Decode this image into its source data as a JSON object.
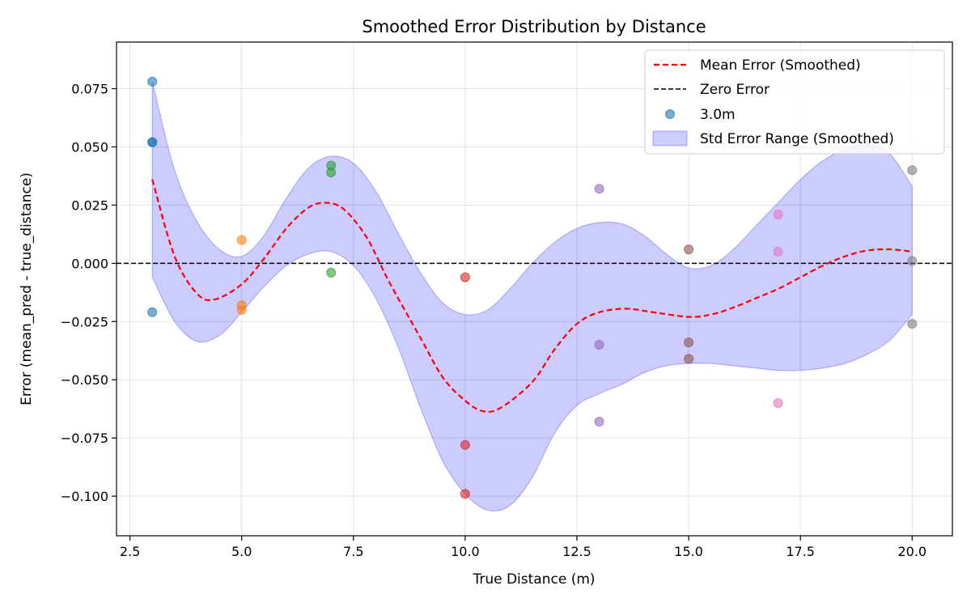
{
  "chart_data": {
    "type": "scatter",
    "title": "Smoothed Error Distribution by Distance",
    "xlabel": "True Distance (m)",
    "ylabel": "Error (mean_pred - true_distance)",
    "xlim": [
      2.2,
      20.9
    ],
    "ylim": [
      -0.117,
      0.095
    ],
    "xticks": [
      2.5,
      5.0,
      7.5,
      10.0,
      12.5,
      15.0,
      17.5,
      20.0
    ],
    "xtick_labels": [
      "2.5",
      "5.0",
      "7.5",
      "10.0",
      "12.5",
      "15.0",
      "17.5",
      "20.0"
    ],
    "yticks": [
      -0.1,
      -0.075,
      -0.05,
      -0.025,
      0.0,
      0.025,
      0.05,
      0.075
    ],
    "ytick_labels": [
      "−0.100",
      "−0.075",
      "−0.050",
      "−0.025",
      "0.000",
      "0.025",
      "0.050",
      "0.075"
    ],
    "grid": true,
    "legend_position": "top-right",
    "legend": [
      {
        "label": "Mean Error (Smoothed)",
        "kind": "line-dashed",
        "color": "#ff0000"
      },
      {
        "label": "Zero Error",
        "kind": "line-dashed",
        "color": "#000000"
      },
      {
        "label": "3.0m",
        "kind": "marker",
        "color": "#1f77b4"
      },
      {
        "label": "Std Error Range (Smoothed)",
        "kind": "patch",
        "color": "#0000ff"
      }
    ],
    "zero_line": {
      "y": 0.0,
      "color": "#000000"
    },
    "mean_curve": {
      "color": "#ff0000",
      "points": [
        [
          3.0,
          0.036
        ],
        [
          3.5,
          0.003
        ],
        [
          4.0,
          -0.013
        ],
        [
          4.4,
          -0.0155
        ],
        [
          5.0,
          -0.009
        ],
        [
          5.5,
          0.002
        ],
        [
          6.0,
          0.015
        ],
        [
          6.5,
          0.024
        ],
        [
          6.9,
          0.026
        ],
        [
          7.3,
          0.023
        ],
        [
          7.8,
          0.011
        ],
        [
          8.3,
          -0.008
        ],
        [
          9.0,
          -0.032
        ],
        [
          9.5,
          -0.049
        ],
        [
          10.0,
          -0.059
        ],
        [
          10.4,
          -0.0635
        ],
        [
          10.8,
          -0.062
        ],
        [
          11.5,
          -0.051
        ],
        [
          12.0,
          -0.037
        ],
        [
          12.5,
          -0.026
        ],
        [
          13.0,
          -0.021
        ],
        [
          13.6,
          -0.0195
        ],
        [
          14.2,
          -0.021
        ],
        [
          15.0,
          -0.023
        ],
        [
          15.5,
          -0.022
        ],
        [
          16.0,
          -0.019
        ],
        [
          16.5,
          -0.015
        ],
        [
          17.0,
          -0.011
        ],
        [
          17.5,
          -0.006
        ],
        [
          18.0,
          -0.001
        ],
        [
          18.5,
          0.003
        ],
        [
          19.0,
          0.0055
        ],
        [
          19.5,
          0.006
        ],
        [
          20.0,
          0.005
        ]
      ]
    },
    "std_band": {
      "color": "#0000ff",
      "upper": [
        [
          3.0,
          0.078
        ],
        [
          3.5,
          0.04
        ],
        [
          4.0,
          0.018
        ],
        [
          4.5,
          0.006
        ],
        [
          5.0,
          0.003
        ],
        [
          5.5,
          0.012
        ],
        [
          6.0,
          0.028
        ],
        [
          6.5,
          0.041
        ],
        [
          7.0,
          0.046
        ],
        [
          7.5,
          0.043
        ],
        [
          8.0,
          0.031
        ],
        [
          8.5,
          0.013
        ],
        [
          9.0,
          -0.004
        ],
        [
          9.5,
          -0.017
        ],
        [
          10.0,
          -0.022
        ],
        [
          10.5,
          -0.02
        ],
        [
          11.0,
          -0.011
        ],
        [
          11.5,
          0.0
        ],
        [
          12.0,
          0.009
        ],
        [
          12.5,
          0.015
        ],
        [
          13.0,
          0.0175
        ],
        [
          13.5,
          0.017
        ],
        [
          14.0,
          0.012
        ],
        [
          14.5,
          0.004
        ],
        [
          15.0,
          -0.002
        ],
        [
          15.5,
          -0.001
        ],
        [
          16.0,
          0.006
        ],
        [
          16.5,
          0.016
        ],
        [
          17.0,
          0.026
        ],
        [
          17.5,
          0.036
        ],
        [
          18.0,
          0.044
        ],
        [
          18.5,
          0.049
        ],
        [
          19.0,
          0.051
        ],
        [
          19.5,
          0.047
        ],
        [
          20.0,
          0.033
        ]
      ],
      "lower": [
        [
          3.0,
          -0.006
        ],
        [
          3.5,
          -0.025
        ],
        [
          4.0,
          -0.0335
        ],
        [
          4.5,
          -0.031
        ],
        [
          5.0,
          -0.021
        ],
        [
          5.5,
          -0.01
        ],
        [
          6.0,
          -0.001
        ],
        [
          6.5,
          0.004
        ],
        [
          7.0,
          0.005
        ],
        [
          7.5,
          -0.001
        ],
        [
          8.0,
          -0.015
        ],
        [
          8.5,
          -0.036
        ],
        [
          9.0,
          -0.062
        ],
        [
          9.5,
          -0.085
        ],
        [
          10.0,
          -0.099
        ],
        [
          10.5,
          -0.106
        ],
        [
          11.0,
          -0.104
        ],
        [
          11.5,
          -0.092
        ],
        [
          12.0,
          -0.073
        ],
        [
          12.5,
          -0.061
        ],
        [
          13.0,
          -0.056
        ],
        [
          13.5,
          -0.052
        ],
        [
          14.0,
          -0.047
        ],
        [
          14.5,
          -0.044
        ],
        [
          15.0,
          -0.043
        ],
        [
          15.5,
          -0.043
        ],
        [
          16.0,
          -0.044
        ],
        [
          16.5,
          -0.045
        ],
        [
          17.0,
          -0.046
        ],
        [
          17.5,
          -0.046
        ],
        [
          18.0,
          -0.045
        ],
        [
          18.5,
          -0.043
        ],
        [
          19.0,
          -0.039
        ],
        [
          19.5,
          -0.033
        ],
        [
          20.0,
          -0.022
        ]
      ]
    },
    "series": [
      {
        "name": "3.0m",
        "color": "#1f77b4",
        "points": [
          [
            3.0,
            0.078
          ],
          [
            3.0,
            0.052
          ],
          [
            3.0,
            0.052
          ],
          [
            3.0,
            -0.021
          ]
        ]
      },
      {
        "color": "#ff7f0e",
        "points": [
          [
            5.0,
            0.01
          ],
          [
            5.0,
            -0.018
          ],
          [
            5.0,
            -0.02
          ]
        ]
      },
      {
        "color": "#2ca02c",
        "points": [
          [
            7.0,
            0.042
          ],
          [
            7.0,
            0.039
          ],
          [
            7.0,
            -0.004
          ]
        ]
      },
      {
        "color": "#d62728",
        "points": [
          [
            10.0,
            -0.006
          ],
          [
            10.0,
            -0.078
          ],
          [
            10.0,
            -0.099
          ]
        ]
      },
      {
        "color": "#9467bd",
        "points": [
          [
            13.0,
            0.032
          ],
          [
            13.0,
            -0.035
          ],
          [
            13.0,
            -0.068
          ]
        ]
      },
      {
        "color": "#8c564b",
        "points": [
          [
            15.0,
            0.006
          ],
          [
            15.0,
            -0.034
          ],
          [
            15.0,
            -0.041
          ]
        ]
      },
      {
        "color": "#e377c2",
        "points": [
          [
            17.0,
            0.021
          ],
          [
            17.0,
            0.005
          ],
          [
            17.0,
            -0.06
          ]
        ]
      },
      {
        "color": "#7f7f7f",
        "points": [
          [
            20.0,
            0.04
          ],
          [
            20.0,
            0.001
          ],
          [
            20.0,
            -0.026
          ]
        ]
      }
    ]
  }
}
